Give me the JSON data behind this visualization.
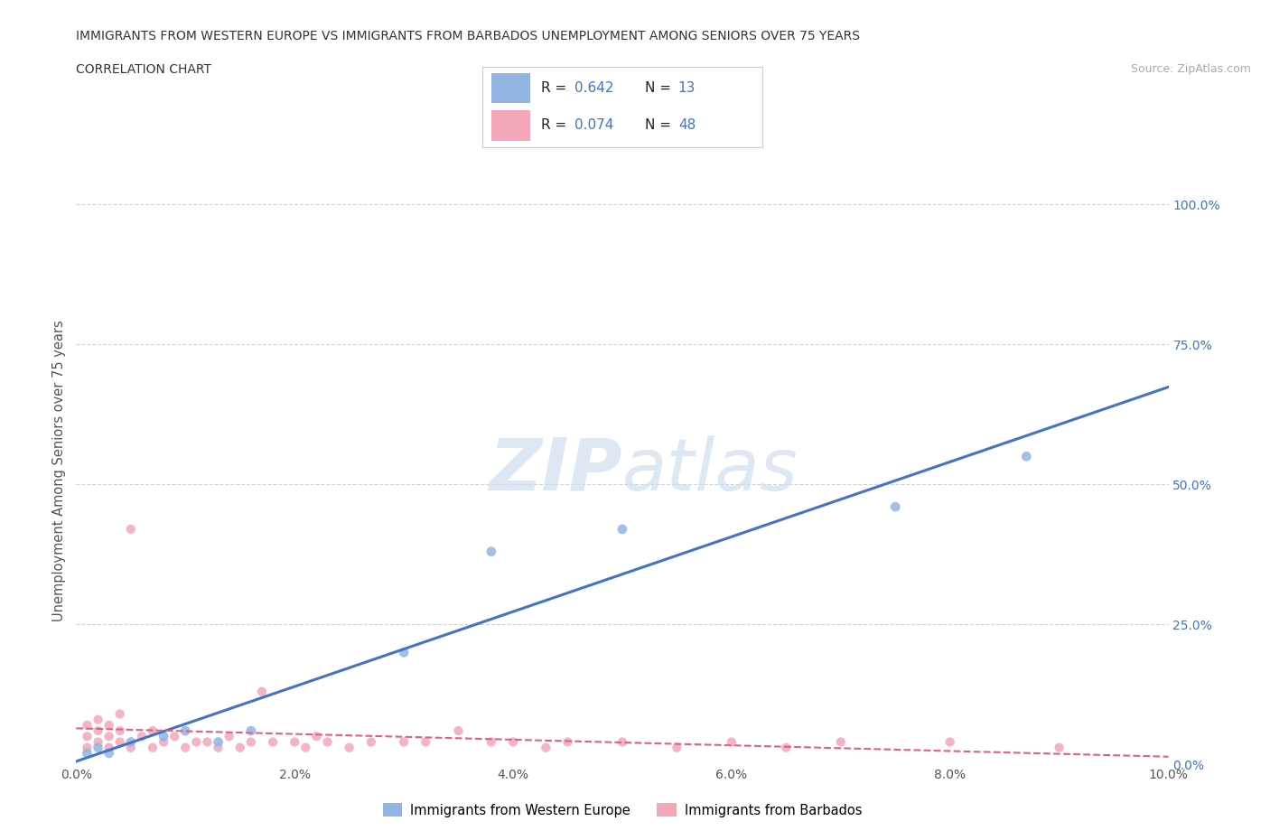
{
  "title_line1": "IMMIGRANTS FROM WESTERN EUROPE VS IMMIGRANTS FROM BARBADOS UNEMPLOYMENT AMONG SENIORS OVER 75 YEARS",
  "title_line2": "CORRELATION CHART",
  "source_text": "Source: ZipAtlas.com",
  "ylabel": "Unemployment Among Seniors over 75 years",
  "watermark_part1": "ZIP",
  "watermark_part2": "atlas",
  "xlim": [
    0.0,
    0.1
  ],
  "ylim": [
    0.0,
    1.05
  ],
  "xticks": [
    0.0,
    0.02,
    0.04,
    0.06,
    0.08,
    0.1
  ],
  "xtick_labels": [
    "0.0%",
    "2.0%",
    "4.0%",
    "6.0%",
    "8.0%",
    "10.0%"
  ],
  "yticks": [
    0.0,
    0.25,
    0.5,
    0.75,
    1.0
  ],
  "ytick_labels": [
    "0.0%",
    "25.0%",
    "50.0%",
    "75.0%",
    "100.0%"
  ],
  "color_blue": "#92b4e3",
  "color_pink": "#f4a7b9",
  "color_blue_line": "#4472c4",
  "color_pink_line": "#e06080",
  "color_blue_text": "#4472c4",
  "legend_label1": "Immigrants from Western Europe",
  "legend_label2": "Immigrants from Barbados",
  "blue_scatter_x": [
    0.001,
    0.002,
    0.003,
    0.005,
    0.008,
    0.01,
    0.013,
    0.016,
    0.03,
    0.038,
    0.05,
    0.075,
    0.087
  ],
  "blue_scatter_y": [
    0.02,
    0.03,
    0.02,
    0.04,
    0.05,
    0.06,
    0.04,
    0.06,
    0.2,
    0.38,
    0.42,
    0.46,
    0.55
  ],
  "pink_scatter_x": [
    0.001,
    0.001,
    0.001,
    0.002,
    0.002,
    0.002,
    0.003,
    0.003,
    0.003,
    0.004,
    0.004,
    0.004,
    0.005,
    0.005,
    0.006,
    0.007,
    0.007,
    0.008,
    0.009,
    0.01,
    0.011,
    0.012,
    0.013,
    0.014,
    0.015,
    0.016,
    0.017,
    0.018,
    0.02,
    0.021,
    0.022,
    0.023,
    0.025,
    0.027,
    0.03,
    0.032,
    0.035,
    0.038,
    0.04,
    0.043,
    0.045,
    0.05,
    0.055,
    0.06,
    0.065,
    0.07,
    0.08,
    0.09
  ],
  "pink_scatter_y": [
    0.03,
    0.05,
    0.07,
    0.04,
    0.06,
    0.08,
    0.03,
    0.05,
    0.07,
    0.04,
    0.06,
    0.09,
    0.03,
    0.42,
    0.05,
    0.03,
    0.06,
    0.04,
    0.05,
    0.03,
    0.04,
    0.04,
    0.03,
    0.05,
    0.03,
    0.04,
    0.13,
    0.04,
    0.04,
    0.03,
    0.05,
    0.04,
    0.03,
    0.04,
    0.04,
    0.04,
    0.06,
    0.04,
    0.04,
    0.03,
    0.04,
    0.04,
    0.03,
    0.04,
    0.03,
    0.04,
    0.04,
    0.03
  ],
  "grid_color": "#cccccc",
  "bg_color": "#ffffff"
}
